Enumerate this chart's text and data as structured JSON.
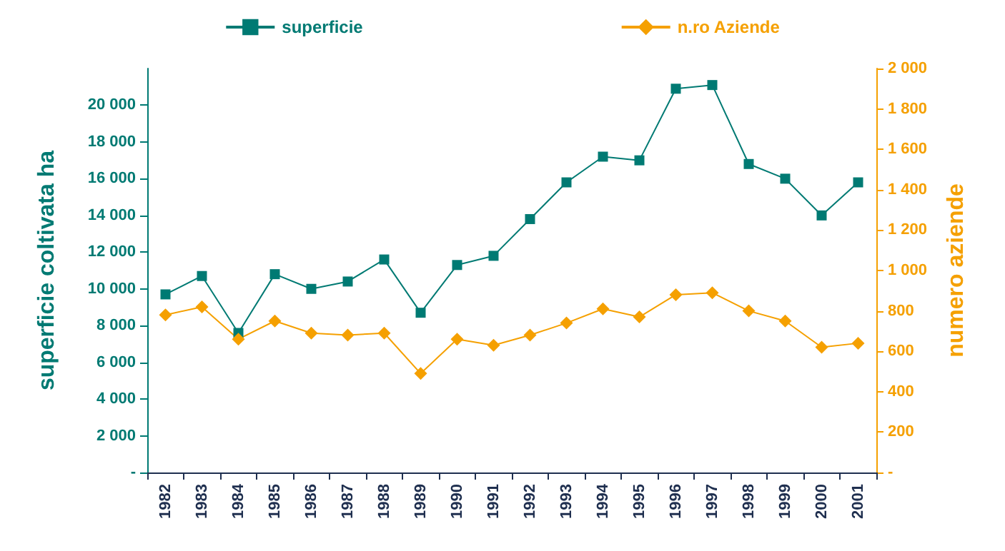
{
  "chart_data": {
    "type": "line",
    "categories": [
      "1982",
      "1983",
      "1984",
      "1985",
      "1986",
      "1987",
      "1988",
      "1989",
      "1990",
      "1991",
      "1992",
      "1993",
      "1994",
      "1995",
      "1996",
      "1997",
      "1998",
      "1999",
      "2000",
      "2001"
    ],
    "ylabel": "superficie coltivata ha",
    "y2label": "numero aziende",
    "series": [
      {
        "name": "superficie",
        "color": "#007a73",
        "marker": "square",
        "values": [
          9700,
          10700,
          7600,
          10800,
          10000,
          10400,
          11600,
          8700,
          11300,
          11800,
          13800,
          15800,
          17200,
          17000,
          20900,
          21100,
          16800,
          16000,
          14000,
          15800
        ]
      },
      {
        "name": "n.ro Aziende",
        "color": "#f5a000",
        "marker": "diamond",
        "axis": "y2",
        "values": [
          780,
          820,
          660,
          750,
          690,
          680,
          690,
          490,
          660,
          630,
          680,
          740,
          810,
          770,
          880,
          890,
          800,
          750,
          620,
          640
        ]
      }
    ],
    "ylim": [
      0,
      22000
    ],
    "yticks": [
      {
        "value": 0,
        "label": "-"
      },
      {
        "value": 2000,
        "label": "2 000"
      },
      {
        "value": 4000,
        "label": "4 000"
      },
      {
        "value": 6000,
        "label": "6 000"
      },
      {
        "value": 8000,
        "label": "8 000"
      },
      {
        "value": 10000,
        "label": "10 000"
      },
      {
        "value": 12000,
        "label": "12 000"
      },
      {
        "value": 14000,
        "label": "14 000"
      },
      {
        "value": 16000,
        "label": "16 000"
      },
      {
        "value": 18000,
        "label": "18 000"
      },
      {
        "value": 20000,
        "label": "20 000"
      }
    ],
    "y2lim": [
      0,
      2000
    ],
    "y2ticks": [
      {
        "value": 0,
        "label": "-"
      },
      200,
      400,
      600,
      800,
      {
        "value": 1000,
        "label": "1 000"
      },
      {
        "value": 1200,
        "label": "1 200"
      },
      {
        "value": 1400,
        "label": "1 400"
      },
      {
        "value": 1600,
        "label": "1 600"
      },
      {
        "value": 1800,
        "label": "1 800"
      },
      {
        "value": 2000,
        "label": "2 000"
      }
    ],
    "grid": false,
    "legend": "top",
    "line_style": "solid"
  }
}
